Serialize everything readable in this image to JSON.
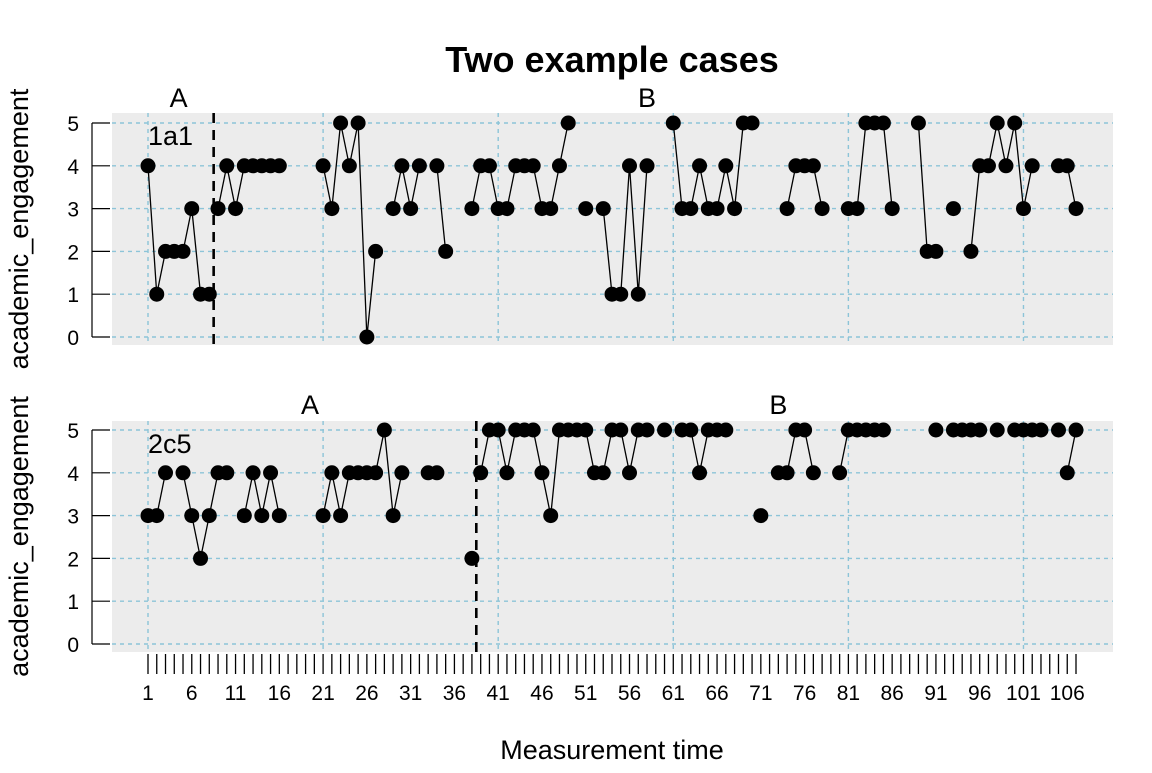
{
  "chart_data": {
    "type": "line",
    "title": "Two example cases",
    "xlabel": "Measurement time",
    "ylabel": "academic_engagement",
    "xlim": [
      1,
      107
    ],
    "ylim": [
      0,
      5
    ],
    "y_ticks": [
      0,
      1,
      2,
      3,
      4,
      5
    ],
    "x_tick_labels": [
      1,
      6,
      11,
      16,
      21,
      26,
      31,
      36,
      41,
      46,
      51,
      56,
      61,
      66,
      71,
      76,
      81,
      86,
      91,
      96,
      101,
      106
    ],
    "grid": true,
    "panels": [
      {
        "case": "1a1",
        "phase_change_x": 8.5,
        "phases": [
          {
            "label": "A",
            "x": 4.5
          },
          {
            "label": "B",
            "x": 58
          }
        ],
        "series": [
          {
            "x": [
              1,
              2,
              3,
              4,
              5,
              6,
              7,
              8
            ],
            "y": [
              4,
              1,
              2,
              2,
              2,
              3,
              1,
              1
            ]
          },
          {
            "x": [
              9,
              10,
              11,
              12,
              13,
              14,
              15,
              16
            ],
            "y": [
              3,
              4,
              3,
              4,
              4,
              4,
              4,
              4
            ]
          },
          {
            "x": [
              21,
              22,
              23,
              24,
              25,
              26,
              27
            ],
            "y": [
              4,
              3,
              5,
              4,
              5,
              0,
              2
            ]
          },
          {
            "x": [
              29,
              30,
              31,
              32
            ],
            "y": [
              3,
              4,
              3,
              4
            ]
          },
          {
            "x": [
              34,
              35
            ],
            "y": [
              4,
              2
            ]
          },
          {
            "x": [
              38,
              39,
              40,
              41,
              42,
              43,
              44,
              45,
              46,
              47,
              48,
              49
            ],
            "y": [
              3,
              4,
              4,
              3,
              3,
              4,
              4,
              4,
              3,
              3,
              4,
              5
            ]
          },
          {
            "x": [
              51
            ],
            "y": [
              3
            ]
          },
          {
            "x": [
              53,
              54,
              55,
              56,
              57,
              58
            ],
            "y": [
              3,
              1,
              1,
              4,
              1,
              4
            ]
          },
          {
            "x": [
              61,
              62,
              63,
              64,
              65,
              66,
              67,
              68,
              69,
              70
            ],
            "y": [
              5,
              3,
              3,
              4,
              3,
              3,
              4,
              3,
              5,
              5
            ]
          },
          {
            "x": [
              74,
              75,
              76,
              77,
              78
            ],
            "y": [
              3,
              4,
              4,
              4,
              3
            ]
          },
          {
            "x": [
              81,
              82,
              83,
              84,
              85,
              86
            ],
            "y": [
              3,
              3,
              5,
              5,
              5,
              3
            ]
          },
          {
            "x": [
              89,
              90,
              91
            ],
            "y": [
              5,
              2,
              2
            ]
          },
          {
            "x": [
              93
            ],
            "y": [
              3
            ]
          },
          {
            "x": [
              95,
              96,
              97,
              98,
              99,
              100,
              101,
              102
            ],
            "y": [
              2,
              4,
              4,
              5,
              4,
              5,
              3,
              4
            ]
          },
          {
            "x": [
              105,
              106,
              107
            ],
            "y": [
              4,
              4,
              3
            ]
          }
        ]
      },
      {
        "case": "2c5",
        "phase_change_x": 38.5,
        "phases": [
          {
            "label": "A",
            "x": 19.5
          },
          {
            "label": "B",
            "x": 73
          }
        ],
        "series": [
          {
            "x": [
              1,
              2,
              3
            ],
            "y": [
              3,
              3,
              4
            ]
          },
          {
            "x": [
              5,
              6,
              7,
              8,
              9,
              10
            ],
            "y": [
              4,
              3,
              2,
              3,
              4,
              4
            ]
          },
          {
            "x": [
              12,
              13,
              14,
              15,
              16
            ],
            "y": [
              3,
              4,
              3,
              4,
              3
            ]
          },
          {
            "x": [
              21,
              22,
              23,
              24,
              25,
              26,
              27,
              28,
              29,
              30
            ],
            "y": [
              3,
              4,
              3,
              4,
              4,
              4,
              4,
              5,
              3,
              4
            ]
          },
          {
            "x": [
              33,
              34
            ],
            "y": [
              4,
              4
            ]
          },
          {
            "x": [
              38
            ],
            "y": [
              2
            ]
          },
          {
            "x": [
              39,
              40,
              41,
              42,
              43,
              44,
              45,
              46,
              47,
              48,
              49,
              50,
              51,
              52,
              53,
              54,
              55,
              56,
              57,
              58
            ],
            "y": [
              4,
              5,
              5,
              4,
              5,
              5,
              5,
              4,
              3,
              5,
              5,
              5,
              5,
              4,
              4,
              5,
              5,
              4,
              5,
              5
            ]
          },
          {
            "x": [
              60
            ],
            "y": [
              5
            ]
          },
          {
            "x": [
              62,
              63,
              64,
              65,
              66,
              67
            ],
            "y": [
              5,
              5,
              4,
              5,
              5,
              5
            ]
          },
          {
            "x": [
              71
            ],
            "y": [
              3
            ]
          },
          {
            "x": [
              73,
              74,
              75,
              76,
              77
            ],
            "y": [
              4,
              4,
              5,
              5,
              4
            ]
          },
          {
            "x": [
              80,
              81,
              82,
              83,
              84,
              85
            ],
            "y": [
              4,
              5,
              5,
              5,
              5,
              5
            ]
          },
          {
            "x": [
              91
            ],
            "y": [
              5
            ]
          },
          {
            "x": [
              93,
              94,
              95,
              96
            ],
            "y": [
              5,
              5,
              5,
              5
            ]
          },
          {
            "x": [
              98
            ],
            "y": [
              5
            ]
          },
          {
            "x": [
              100,
              101,
              102,
              103
            ],
            "y": [
              5,
              5,
              5,
              5
            ]
          },
          {
            "x": [
              105
            ],
            "y": [
              5
            ]
          },
          {
            "x": [
              106,
              107
            ],
            "y": [
              4,
              5
            ]
          }
        ]
      }
    ]
  }
}
